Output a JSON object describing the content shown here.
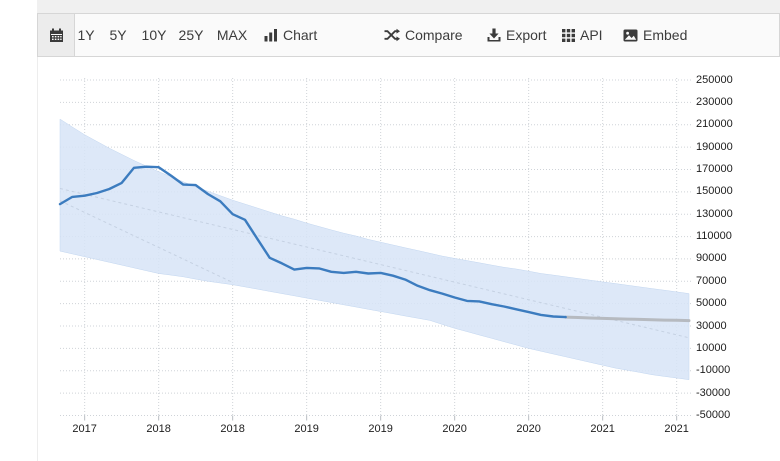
{
  "toolbar": {
    "ranges": [
      {
        "label": "1Y"
      },
      {
        "label": "5Y"
      },
      {
        "label": "10Y"
      },
      {
        "label": "25Y"
      },
      {
        "label": "MAX"
      }
    ],
    "actions": [
      {
        "label": "Chart",
        "icon": "bar-chart-icon"
      },
      {
        "label": "Compare",
        "icon": "shuffle-icon"
      },
      {
        "label": "Export",
        "icon": "download-icon"
      },
      {
        "label": "API",
        "icon": "grid-icon"
      },
      {
        "label": "Embed",
        "icon": "image-icon"
      }
    ]
  },
  "chart_data": {
    "type": "line",
    "grid": "dotted",
    "band_color": "#d7e4f7",
    "x_unit": "month",
    "x_start": "2017-05",
    "x_end": "2021-08",
    "months_total": 51,
    "x_tick_labels": [
      "2017",
      "2018",
      "2018",
      "2019",
      "2019",
      "2020",
      "2020",
      "2021",
      "2021"
    ],
    "x_tick_dates": [
      "2017-07",
      "2018-01",
      "2018-07",
      "2019-01",
      "2019-07",
      "2020-01",
      "2020-07",
      "2021-01",
      "2021-07"
    ],
    "x_tick_indices": [
      2,
      8,
      14,
      20,
      26,
      32,
      38,
      44,
      50
    ],
    "y_ticks": [
      250000,
      230000,
      210000,
      190000,
      170000,
      150000,
      130000,
      110000,
      90000,
      70000,
      50000,
      30000,
      10000,
      -10000,
      -30000,
      -50000
    ],
    "y_tick_labels": [
      "250000",
      "230000",
      "210000",
      "190000",
      "170000",
      "150000",
      "130000",
      "110000",
      "90000",
      "70000",
      "50000",
      "30000",
      "10000",
      "-10000",
      "-30000",
      "-50000"
    ],
    "ylim": [
      -50000,
      250000
    ],
    "series": [
      {
        "name": "history",
        "type": "line",
        "color": "#3c7cbf",
        "start_index": 0,
        "values": [
          139000,
          145500,
          146500,
          149000,
          152500,
          158000,
          171500,
          172500,
          172000,
          164500,
          156500,
          156000,
          148000,
          141500,
          130000,
          125000,
          108000,
          91000,
          86000,
          80500,
          82000,
          81500,
          78500,
          77500,
          78500,
          77000,
          77500,
          75000,
          71500,
          66000,
          62000,
          59000,
          55500,
          52500,
          52000,
          49500,
          47500,
          45000,
          42500,
          40000,
          38500,
          38000
        ]
      },
      {
        "name": "forecast",
        "type": "line",
        "color": "#b6bac0",
        "start_index": 41,
        "values": [
          38000,
          37600,
          37200,
          36800,
          36500,
          36200,
          35900,
          35600,
          35300,
          35100,
          34900
        ]
      },
      {
        "name": "band_upper",
        "type": "area-edge",
        "start_index": 0,
        "values": [
          215000,
          208000,
          201000,
          195000,
          189000,
          183500,
          178000,
          173000,
          168000,
          163500,
          159000,
          154500,
          150500,
          146500,
          142500,
          139000,
          135500,
          132000,
          128500,
          125500,
          122000,
          119000,
          116000,
          113000,
          110500,
          107500,
          105000,
          102500,
          100000,
          97500,
          95000,
          92500,
          90500,
          88500,
          86500,
          84500,
          82500,
          81000,
          79000,
          77000,
          75500,
          74000,
          72500,
          71000,
          69500,
          68000,
          66500,
          65000,
          63500,
          62000,
          60500,
          59000
        ]
      },
      {
        "name": "band_lower",
        "type": "area-edge",
        "start_index": 0,
        "values": [
          97000,
          94500,
          92000,
          89500,
          87000,
          84500,
          82000,
          79500,
          77000,
          75500,
          74000,
          72000,
          70000,
          68500,
          67000,
          65000,
          63000,
          61000,
          59000,
          57000,
          55000,
          53000,
          51000,
          49000,
          47000,
          45000,
          43000,
          41000,
          39000,
          37000,
          35000,
          31500,
          28000,
          25000,
          22000,
          19000,
          16000,
          13000,
          10000,
          7500,
          5000,
          2500,
          0,
          -2500,
          -5000,
          -7500,
          -9500,
          -11500,
          -13500,
          -15000,
          -16500,
          -18000
        ]
      }
    ],
    "trend_lines": [
      {
        "x1_index": 0,
        "y1": 153000,
        "x2_index": 51,
        "y2": 19500
      },
      {
        "x1_index": 0,
        "y1": 142000,
        "x2_index": 14,
        "y2": 69000
      }
    ]
  }
}
